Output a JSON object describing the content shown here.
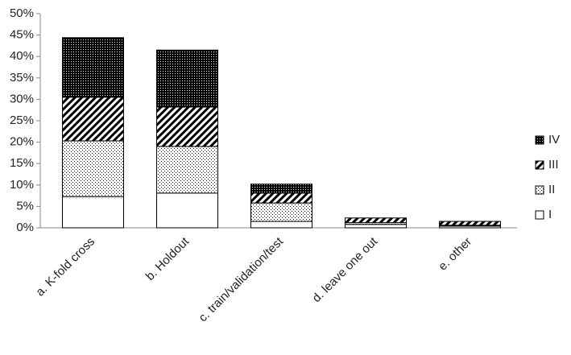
{
  "chart_data": {
    "type": "stacked-bar",
    "categories": [
      "a. K-fold cross",
      "b. Holdout",
      "c. train/validation/test",
      "d. leave one out",
      "e. other"
    ],
    "series": [
      {
        "name": "I",
        "color": "#000000",
        "pattern": "solid-white",
        "values": [
          7.3,
          8.1,
          1.5,
          0.8,
          0.4
        ]
      },
      {
        "name": "II",
        "color": "#000000",
        "pattern": "sparse-dots",
        "values": [
          13.0,
          10.9,
          4.3,
          0.4,
          0.2
        ]
      },
      {
        "name": "III",
        "color": "#000000",
        "pattern": "diagonal-lines",
        "values": [
          10.2,
          9.2,
          2.3,
          1.1,
          0.9
        ]
      },
      {
        "name": "IV",
        "color": "#000000",
        "pattern": "dense-checker",
        "values": [
          13.9,
          13.3,
          2.1,
          0,
          0
        ]
      }
    ],
    "ylim": [
      0,
      50
    ],
    "yticks": [
      {
        "value": 0,
        "label": "0%"
      },
      {
        "value": 5,
        "label": "5%"
      },
      {
        "value": 10,
        "label": "10%"
      },
      {
        "value": 15,
        "label": "15%"
      },
      {
        "value": 20,
        "label": "20%"
      },
      {
        "value": 25,
        "label": "25%"
      },
      {
        "value": 30,
        "label": "30%"
      },
      {
        "value": 35,
        "label": "35%"
      },
      {
        "value": 40,
        "label": "40%"
      },
      {
        "value": 45,
        "label": "45%"
      },
      {
        "value": 50,
        "label": "50%"
      }
    ],
    "grid": false,
    "legend": "right"
  }
}
